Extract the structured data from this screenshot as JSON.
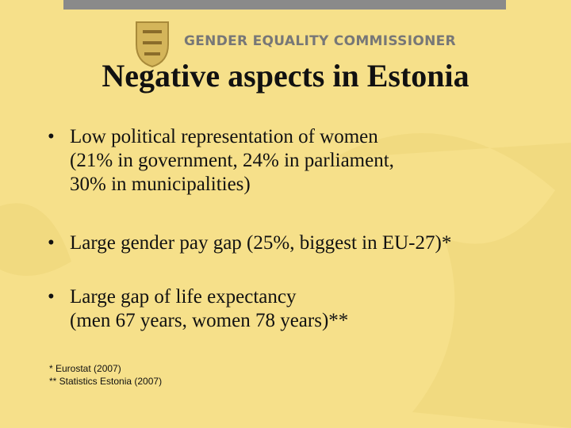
{
  "header": {
    "organization": "GENDER EQUALITY COMMISSIONER",
    "title": "Negative aspects in Estonia"
  },
  "bullets": [
    [
      "Low political representation of women",
      "(21% in government, 24% in parliament,",
      "30% in municipalities)"
    ],
    [
      "Large gender pay gap (25%, biggest in EU-27)*"
    ],
    [
      "Large gap of life expectancy",
      "(men 67 years, women 78 years)**"
    ]
  ],
  "footnotes": [
    "* Eurostat (2007)",
    "** Statistics Estonia (2007)"
  ]
}
